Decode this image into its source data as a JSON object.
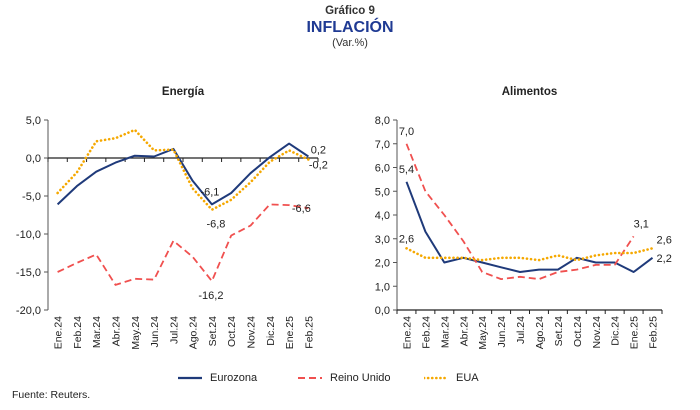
{
  "header": {
    "figure_number": "Gráfico 9",
    "title": "INFLACIÓN",
    "subtitle": "(Var.%)"
  },
  "source": "Fuente: Reuters.",
  "legend": [
    {
      "name": "Eurozona",
      "color": "#1f3a7a",
      "style": "solid"
    },
    {
      "name": "Reino Unido",
      "color": "#f0504f",
      "style": "dashed"
    },
    {
      "name": "EUA",
      "color": "#f5a800",
      "style": "dotted"
    }
  ],
  "chart_data": [
    {
      "type": "line",
      "title": "Energía",
      "categories": [
        "Ene.24",
        "Feb.24",
        "Mar.24",
        "Abr.24",
        "May.24",
        "Jun.24",
        "Jul.24",
        "Ago.24",
        "Set.24",
        "Oct.24",
        "Nov.24",
        "Dic.24",
        "Ene.25",
        "Feb.25"
      ],
      "ylim": [
        -20,
        5
      ],
      "yticks": [
        5,
        0,
        -5,
        -10,
        -15,
        -20
      ],
      "ytick_labels": [
        "5,0",
        "0,0",
        "-5,0",
        "-10,0",
        "-15,0",
        "-20,0"
      ],
      "grid": false,
      "series": [
        {
          "name": "Eurozona",
          "values": [
            -6.1,
            -3.7,
            -1.8,
            -0.6,
            0.3,
            0.2,
            1.2,
            -3.0,
            -6.1,
            -4.6,
            -2.0,
            0.1,
            1.9,
            0.2
          ]
        },
        {
          "name": "Reino Unido",
          "values": [
            -15.0,
            -13.8,
            -12.7,
            -16.7,
            -15.9,
            -16.0,
            -10.9,
            -13.0,
            -16.2,
            -10.2,
            -8.9,
            -6.1,
            -6.2,
            -6.6
          ]
        },
        {
          "name": "EUA",
          "values": [
            -4.6,
            -1.9,
            2.2,
            2.6,
            3.7,
            1.0,
            1.1,
            -4.0,
            -6.8,
            -5.5,
            -3.2,
            -0.5,
            1.0,
            -0.2
          ]
        }
      ],
      "annotations": [
        {
          "text": "-6,1",
          "series": "Eurozona",
          "index": 8
        },
        {
          "text": "-6,8",
          "series": "EUA",
          "index": 8
        },
        {
          "text": "-16,2",
          "series": "Reino Unido",
          "index": 8
        },
        {
          "text": "0,2",
          "series": "Eurozona",
          "index": 13
        },
        {
          "text": "-0,2",
          "series": "EUA",
          "index": 13
        },
        {
          "text": "-6,6",
          "series": "Reino Unido",
          "index": 13
        }
      ]
    },
    {
      "type": "line",
      "title": "Alimentos",
      "categories": [
        "Ene.24",
        "Feb.24",
        "Mar.24",
        "Abr.24",
        "May.24",
        "Jun.24",
        "Jul.24",
        "Ago.24",
        "Set.24",
        "Oct.24",
        "Nov.24",
        "Dic.24",
        "Ene.25",
        "Feb.25"
      ],
      "ylim": [
        0,
        8
      ],
      "yticks": [
        8,
        7,
        6,
        5,
        4,
        3,
        2,
        1,
        0
      ],
      "ytick_labels": [
        "8,0",
        "7,0",
        "6,0",
        "5,0",
        "4,0",
        "3,0",
        "2,0",
        "1,0",
        "0,0"
      ],
      "grid": false,
      "series": [
        {
          "name": "Eurozona",
          "values": [
            5.4,
            3.3,
            2.0,
            2.2,
            2.0,
            1.8,
            1.6,
            1.7,
            1.7,
            2.2,
            2.0,
            2.0,
            1.6,
            2.2
          ]
        },
        {
          "name": "Reino Unido",
          "values": [
            7.0,
            5.0,
            4.0,
            2.9,
            1.6,
            1.3,
            1.4,
            1.3,
            1.6,
            1.7,
            1.9,
            1.9,
            3.1,
            null
          ]
        },
        {
          "name": "EUA",
          "values": [
            2.6,
            2.2,
            2.2,
            2.2,
            2.1,
            2.2,
            2.2,
            2.1,
            2.3,
            2.1,
            2.3,
            2.4,
            2.4,
            2.6
          ]
        }
      ],
      "annotations": [
        {
          "text": "7,0",
          "series": "Reino Unido",
          "index": 0
        },
        {
          "text": "5,4",
          "series": "Eurozona",
          "index": 0
        },
        {
          "text": "2,6",
          "series": "EUA",
          "index": 0
        },
        {
          "text": "3,1",
          "series": "Reino Unido",
          "index": 12
        },
        {
          "text": "2,6",
          "series": "EUA",
          "index": 13
        },
        {
          "text": "2,2",
          "series": "Eurozona",
          "index": 13
        }
      ]
    }
  ]
}
